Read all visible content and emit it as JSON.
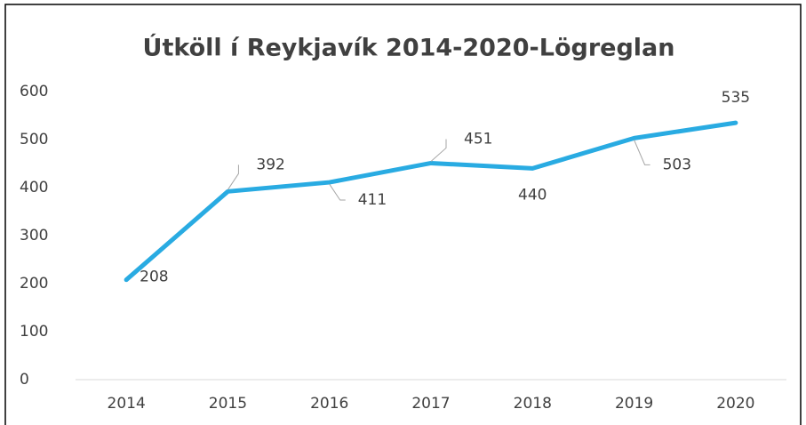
{
  "chart_data": {
    "type": "line",
    "title": "Útköll í Reykjavík 2014-2020-Lögreglan",
    "categories": [
      "2014",
      "2015",
      "2016",
      "2017",
      "2018",
      "2019",
      "2020"
    ],
    "values": [
      208,
      392,
      411,
      451,
      440,
      503,
      535
    ],
    "color": "#29abe2",
    "ylim": [
      0,
      600
    ],
    "yticks": [
      0,
      100,
      200,
      300,
      400,
      500,
      600
    ],
    "grid": false
  }
}
